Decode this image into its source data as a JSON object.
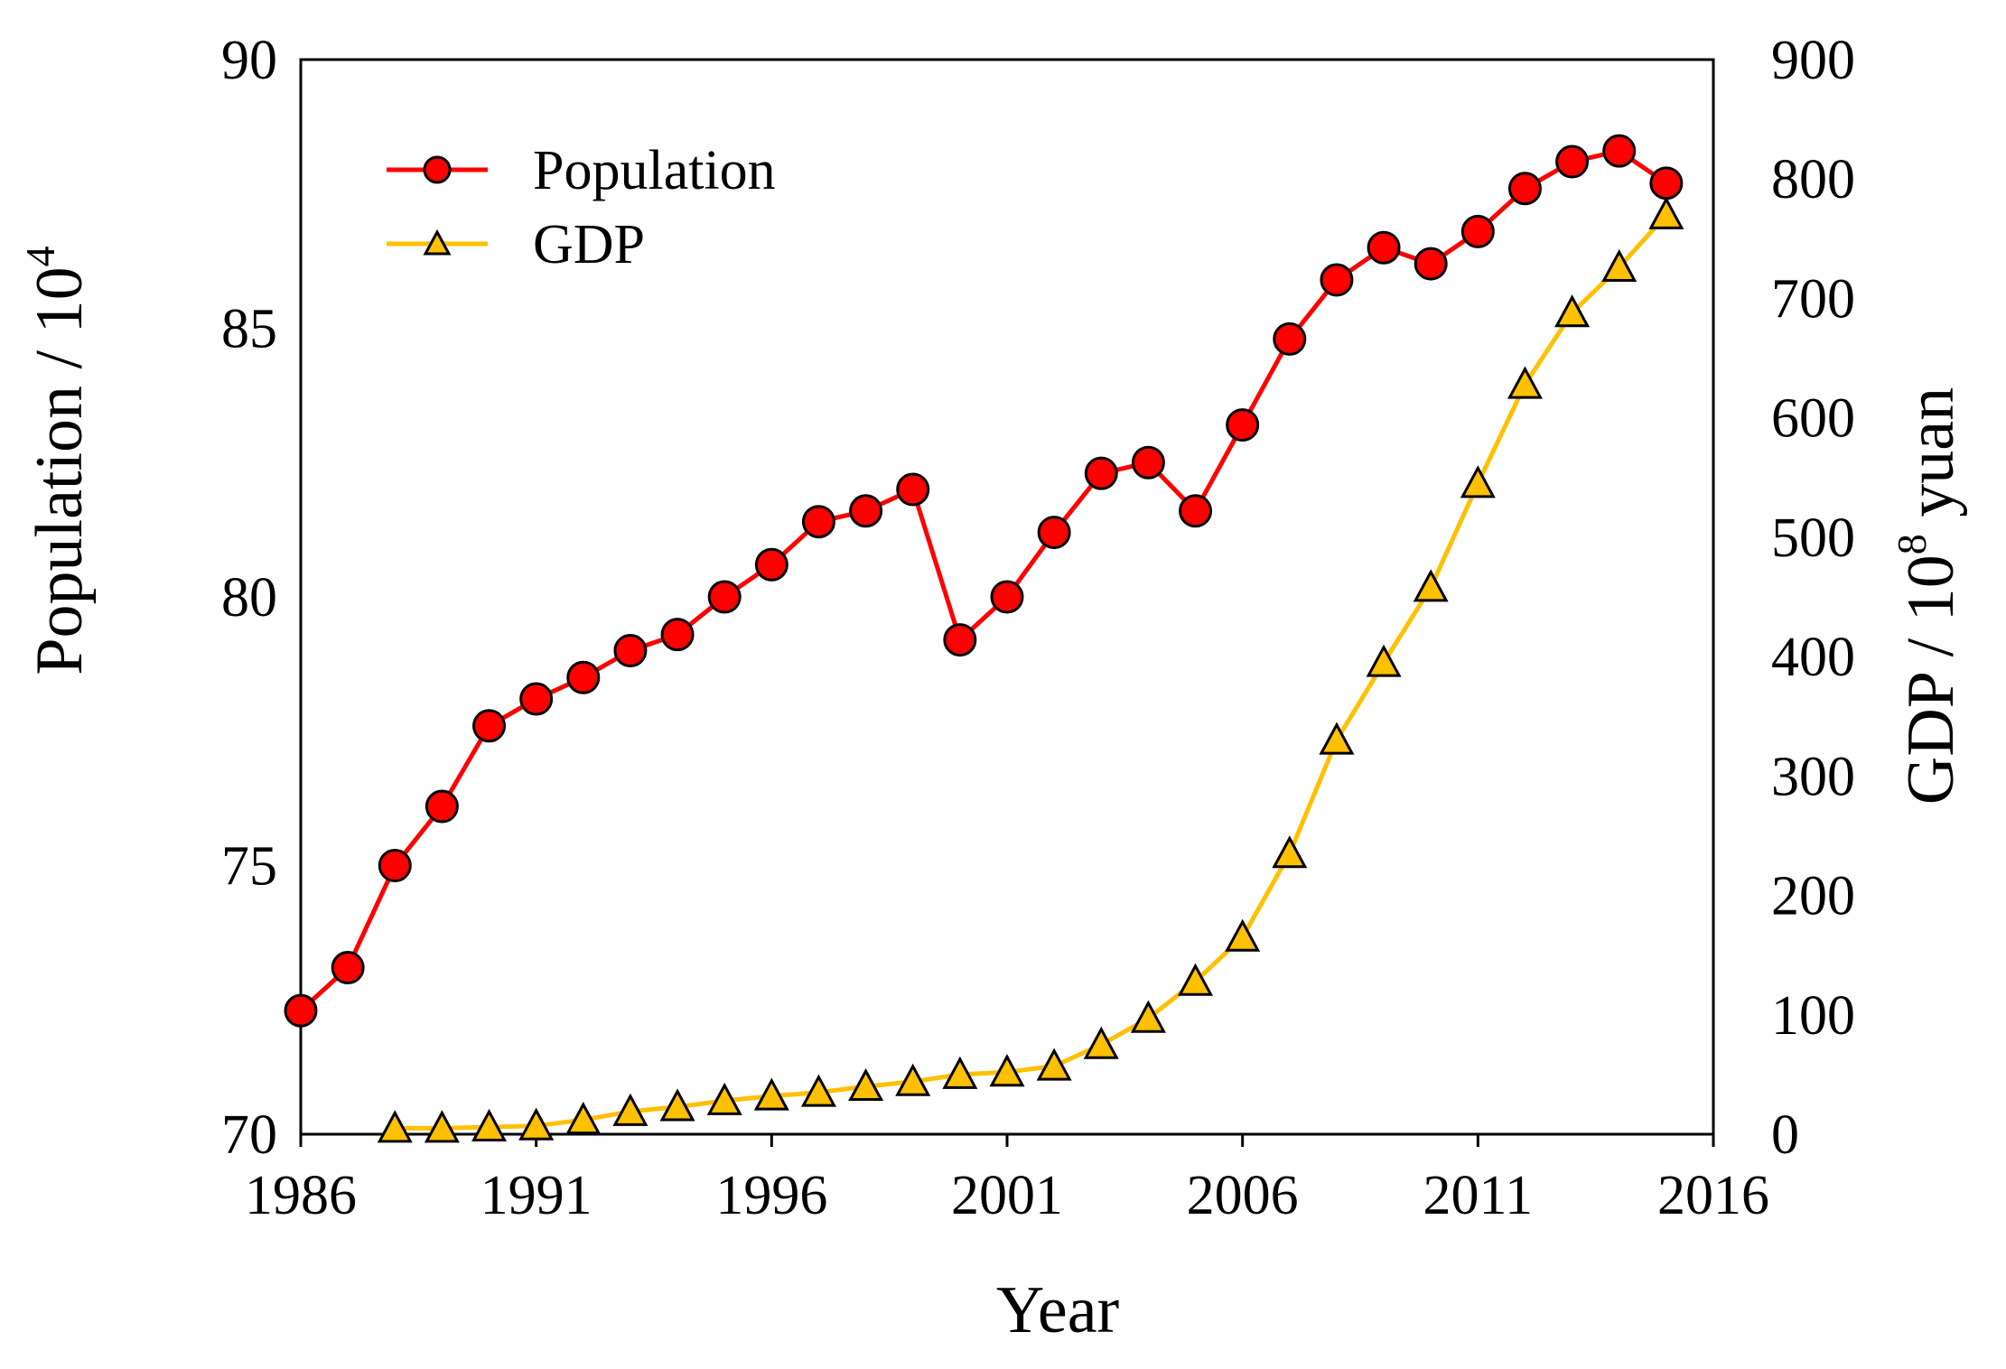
{
  "chart_data": {
    "type": "line",
    "xlabel": "Year",
    "ylabel": "Population / 10",
    "ylabel_sup": "4",
    "y2label": "GDP / 10",
    "y2label_sup": "8",
    "y2label_tail": " yuan",
    "xlim": [
      1986,
      2016
    ],
    "ylim": [
      70,
      90
    ],
    "y2lim": [
      0,
      900
    ],
    "x_ticks": [
      1986,
      1991,
      1996,
      2001,
      2006,
      2011,
      2016
    ],
    "y_ticks": [
      70,
      75,
      80,
      85,
      90
    ],
    "y2_ticks": [
      0,
      100,
      200,
      300,
      400,
      500,
      600,
      700,
      800,
      900
    ],
    "legend_position": "top-left",
    "grid": false,
    "series": [
      {
        "name": "Population",
        "axis": "left",
        "color": "#ff0000",
        "marker": "circle",
        "marker_fill": "#ff0000",
        "x": [
          1986,
          1987,
          1988,
          1989,
          1990,
          1991,
          1992,
          1993,
          1994,
          1995,
          1996,
          1997,
          1998,
          1999,
          2000,
          2001,
          2002,
          2003,
          2004,
          2005,
          2006,
          2007,
          2008,
          2009,
          2010,
          2011,
          2012,
          2013,
          2014,
          2015
        ],
        "values": [
          72.3,
          73.1,
          75.0,
          76.1,
          77.6,
          78.1,
          78.5,
          79.0,
          79.3,
          80.0,
          80.6,
          81.4,
          81.6,
          82.0,
          79.2,
          80.0,
          81.2,
          82.3,
          82.5,
          81.6,
          83.2,
          84.8,
          85.9,
          86.5,
          86.2,
          86.8,
          87.6,
          88.1,
          88.3,
          87.7
        ]
      },
      {
        "name": "GDP",
        "axis": "right",
        "color": "#ffc000",
        "marker": "triangle",
        "marker_fill": "#ffc000",
        "x": [
          1988,
          1989,
          1990,
          1991,
          1992,
          1993,
          1994,
          1995,
          1996,
          1997,
          1998,
          1999,
          2000,
          2001,
          2002,
          2003,
          2004,
          2005,
          2006,
          2007,
          2008,
          2009,
          2010,
          2011,
          2012,
          2013,
          2014,
          2015
        ],
        "values": [
          5,
          5,
          6,
          7,
          12,
          19,
          23,
          28,
          32,
          35,
          40,
          44,
          50,
          52,
          57,
          75,
          97,
          128,
          165,
          235,
          330,
          395,
          458,
          545,
          628,
          688,
          726,
          770
        ]
      }
    ]
  }
}
